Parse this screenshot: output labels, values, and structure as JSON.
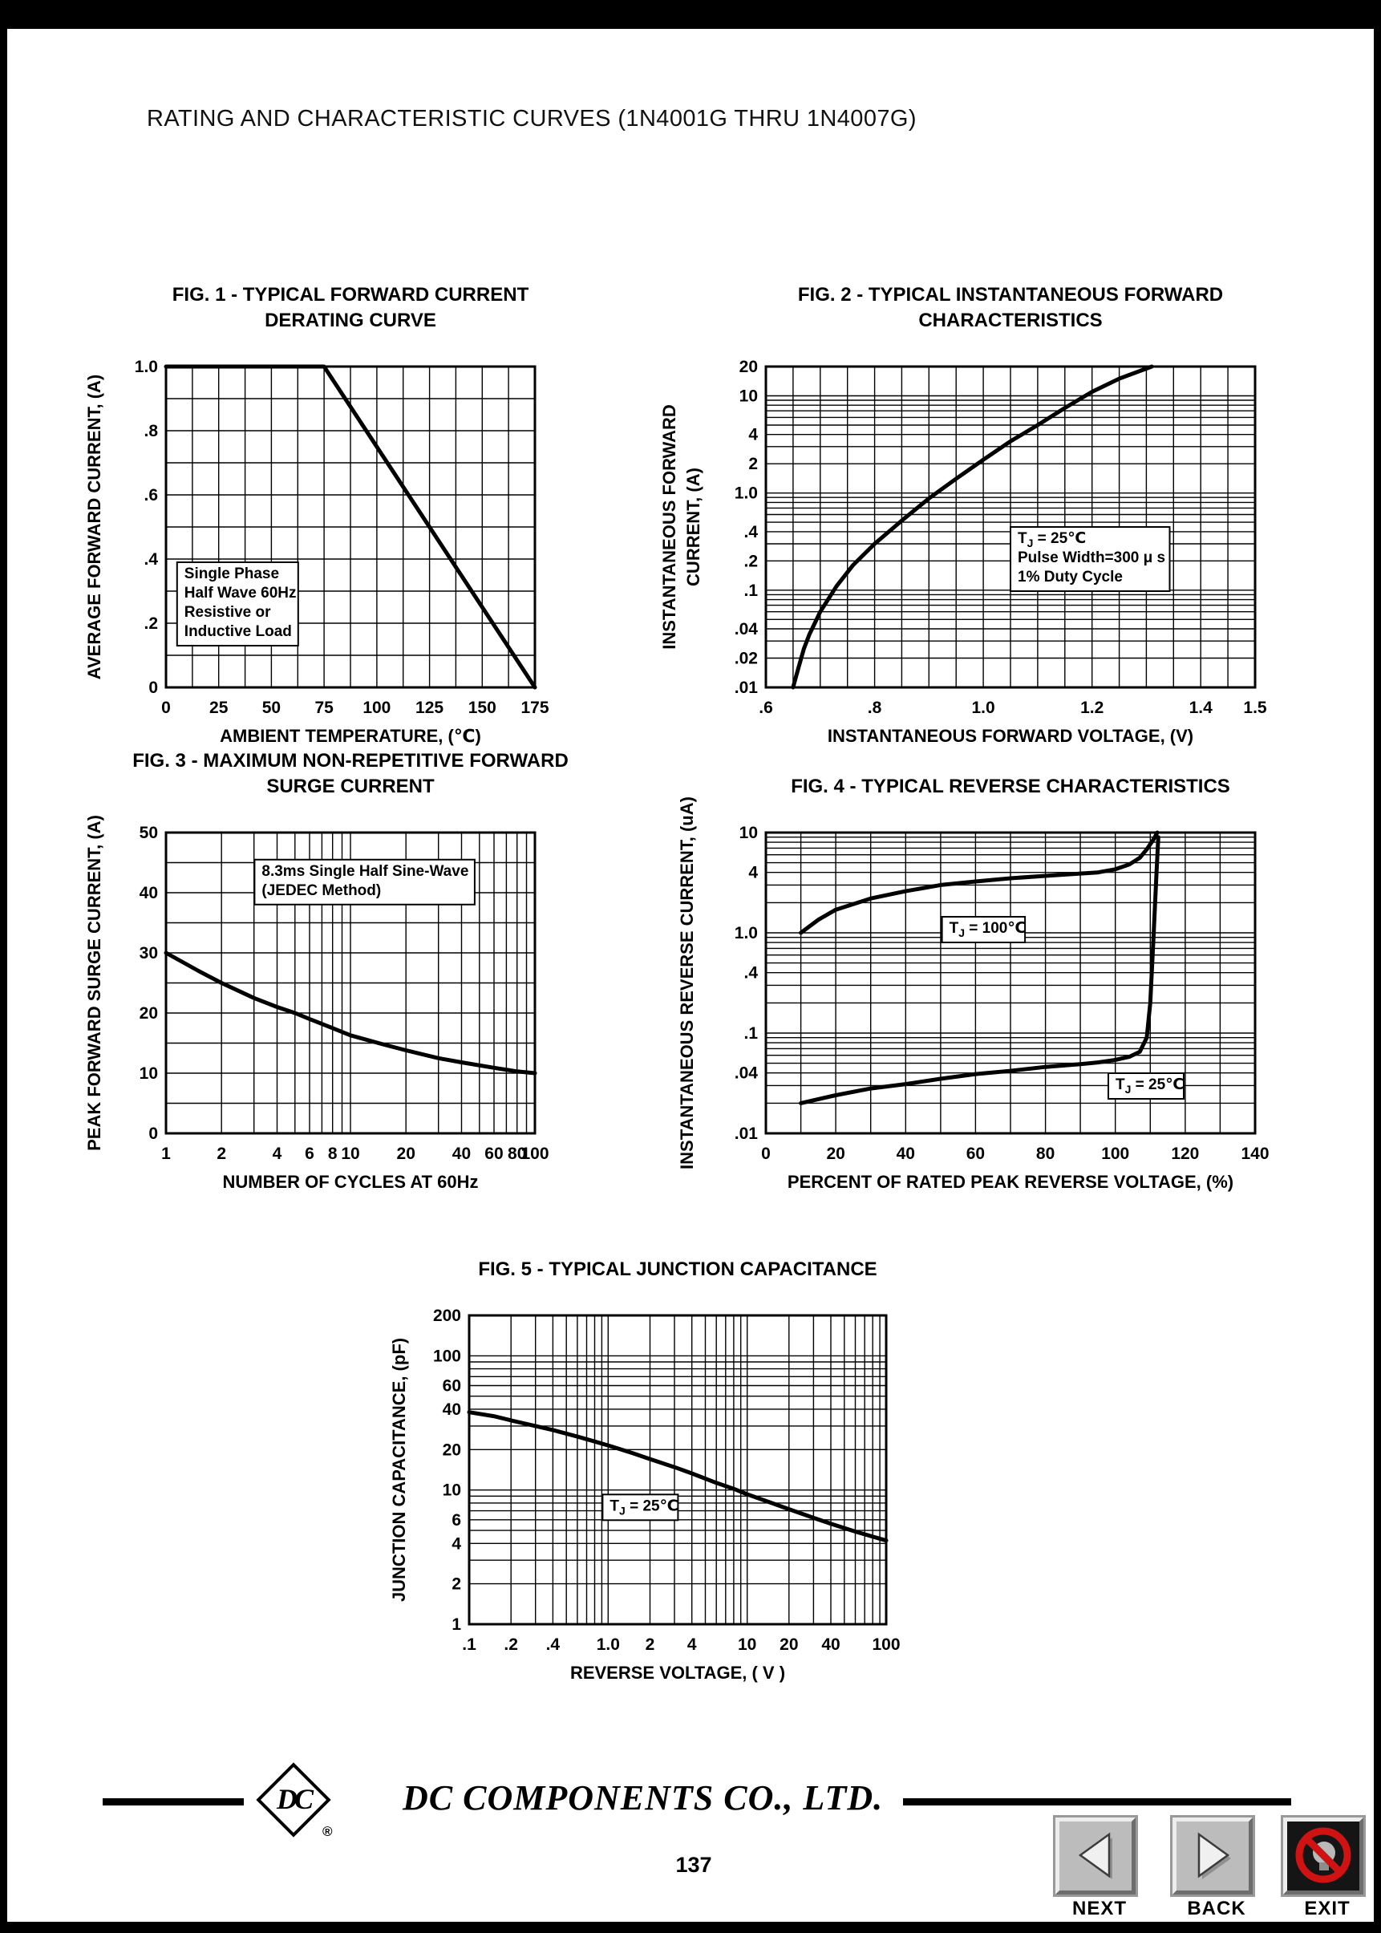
{
  "page": {
    "title": "RATING AND CHARACTERISTIC CURVES (1N4001G THRU 1N4007G)",
    "page_number": "137"
  },
  "footer": {
    "company": "DC COMPONENTS CO., LTD.",
    "logo_text": "DC",
    "registered_mark": "®"
  },
  "nav": {
    "next_label": "NEXT",
    "back_label": "BACK",
    "exit_label": "EXIT",
    "next_icon": "left-triangle",
    "back_icon": "right-triangle",
    "exit_icon": "crossed-out-lightbulb"
  },
  "chart_data": [
    {
      "id": "fig1",
      "type": "line",
      "title_lines": [
        "FIG. 1 - TYPICAL FORWARD CURRENT",
        "DERATING CURVE"
      ],
      "xlabel": "AMBIENT TEMPERATURE, (℃)",
      "ylabel_lines": [
        "AVERAGE FORWARD  CURRENT, (A)"
      ],
      "grid": true,
      "x_axis": {
        "scale": "linear",
        "min": 0,
        "max": 175,
        "minor_step": 12.5,
        "ticks": [
          0,
          25,
          50,
          75,
          100,
          125,
          150,
          175
        ],
        "tick_labels": [
          "0",
          "25",
          "50",
          "75",
          "100",
          "125",
          "150",
          "175"
        ]
      },
      "y_axis": {
        "scale": "linear",
        "min": 0,
        "max": 1,
        "minor_step": 0.1,
        "ticks": [
          0,
          0.2,
          0.4,
          0.6,
          0.8,
          1
        ],
        "tick_labels": [
          "0",
          ".2",
          ".4",
          ".6",
          ".8",
          "1.0"
        ]
      },
      "series": [
        {
          "name": "derating-curve",
          "points": [
            [
              0,
              1
            ],
            [
              75,
              1
            ],
            [
              175,
              0
            ]
          ]
        }
      ],
      "annotations": [
        {
          "lines": [
            "Single Phase",
            "Half Wave 60Hz",
            "Resistive or",
            "Inductive Load"
          ],
          "fx": 0.03,
          "fy": 0.61,
          "boxed": true
        }
      ]
    },
    {
      "id": "fig2",
      "type": "line",
      "title_lines": [
        "FIG. 2 - TYPICAL INSTANTANEOUS FORWARD",
        "CHARACTERISTICS"
      ],
      "xlabel": "INSTANTANEOUS FORWARD VOLTAGE, (V)",
      "ylabel_lines": [
        "INSTANTANEOUS FORWARD",
        "CURRENT, (A)"
      ],
      "grid": true,
      "x_axis": {
        "scale": "linear",
        "min": 0.6,
        "max": 1.5,
        "minor_step": 0.05,
        "ticks": [
          0.6,
          0.8,
          1.0,
          1.2,
          1.4,
          1.5
        ],
        "tick_labels": [
          ".6",
          ".8",
          "1.0",
          "1.2",
          "1.4",
          "1.5"
        ]
      },
      "y_axis": {
        "scale": "log",
        "min": 0.01,
        "max": 20,
        "ticks": [
          20,
          10,
          4,
          2,
          1,
          0.4,
          0.2,
          0.1,
          0.04,
          0.02,
          0.01
        ],
        "tick_labels": [
          "20",
          "10",
          "4",
          "2",
          "1.0",
          ".4",
          ".2",
          ".1",
          ".04",
          ".02",
          ".01"
        ]
      },
      "series": [
        {
          "name": "forward-characteristic",
          "points": [
            [
              0.65,
              0.01
            ],
            [
              0.66,
              0.016
            ],
            [
              0.67,
              0.025
            ],
            [
              0.68,
              0.035
            ],
            [
              0.7,
              0.06
            ],
            [
              0.73,
              0.11
            ],
            [
              0.76,
              0.18
            ],
            [
              0.8,
              0.3
            ],
            [
              0.85,
              0.52
            ],
            [
              0.9,
              0.88
            ],
            [
              0.95,
              1.4
            ],
            [
              1.0,
              2.2
            ],
            [
              1.05,
              3.4
            ],
            [
              1.1,
              5.0
            ],
            [
              1.15,
              7.5
            ],
            [
              1.2,
              11
            ],
            [
              1.25,
              15
            ],
            [
              1.31,
              20
            ]
          ]
        }
      ],
      "annotations": [
        {
          "lines": [
            "TJ = 25℃",
            "Pulse Width=300 μ s",
            "1% Duty Cycle"
          ],
          "fx": 0.5,
          "fy": 0.5,
          "boxed": true
        }
      ]
    },
    {
      "id": "fig3",
      "type": "line",
      "title_lines": [
        "FIG. 3 - MAXIMUM NON-REPETITIVE FORWARD",
        "SURGE CURRENT"
      ],
      "xlabel": "NUMBER OF CYCLES AT 60Hz",
      "ylabel_lines": [
        "PEAK FORWARD SURGE CURRENT, (A)"
      ],
      "grid": true,
      "x_axis": {
        "scale": "log",
        "min": 1,
        "max": 100,
        "ticks": [
          1,
          2,
          4,
          6,
          8,
          10,
          20,
          40,
          60,
          80,
          100
        ],
        "tick_labels": [
          "1",
          "2",
          "4",
          "6",
          "8",
          "10",
          "20",
          "40",
          "60",
          "80",
          "100"
        ]
      },
      "y_axis": {
        "scale": "linear",
        "min": 0,
        "max": 50,
        "minor_step": 5,
        "ticks": [
          0,
          10,
          20,
          30,
          40,
          50
        ],
        "tick_labels": [
          "0",
          "10",
          "20",
          "30",
          "40",
          "50"
        ]
      },
      "series": [
        {
          "name": "surge-current",
          "points": [
            [
              1,
              30
            ],
            [
              1.5,
              27
            ],
            [
              2,
              25
            ],
            [
              3,
              22.5
            ],
            [
              4,
              21
            ],
            [
              5,
              20
            ],
            [
              6,
              19
            ],
            [
              8,
              17.5
            ],
            [
              10,
              16.3
            ],
            [
              15,
              14.8
            ],
            [
              20,
              13.8
            ],
            [
              30,
              12.5
            ],
            [
              40,
              11.8
            ],
            [
              60,
              10.9
            ],
            [
              80,
              10.3
            ],
            [
              100,
              10
            ]
          ]
        }
      ],
      "annotations": [
        {
          "lines": [
            "8.3ms Single Half Sine-Wave",
            "(JEDEC Method)"
          ],
          "fx": 0.24,
          "fy": 0.09,
          "boxed": true
        }
      ]
    },
    {
      "id": "fig4",
      "type": "line",
      "title_lines": [
        "FIG. 4 - TYPICAL REVERSE CHARACTERISTICS"
      ],
      "xlabel": "PERCENT OF RATED PEAK REVERSE VOLTAGE, (%)",
      "ylabel_lines": [
        "INSTANTANEOUS REVERSE CURRENT, (uA)"
      ],
      "grid": true,
      "x_axis": {
        "scale": "linear",
        "min": 0,
        "max": 140,
        "minor_step": 10,
        "ticks": [
          0,
          20,
          40,
          60,
          80,
          100,
          120,
          140
        ],
        "tick_labels": [
          "0",
          "20",
          "40",
          "60",
          "80",
          "100",
          "120",
          "140"
        ]
      },
      "y_axis": {
        "scale": "log",
        "min": 0.01,
        "max": 10,
        "ticks": [
          10,
          4,
          1,
          0.4,
          0.1,
          0.04,
          0.01
        ],
        "tick_labels": [
          "10",
          "4",
          "1.0",
          ".4",
          ".1",
          ".04",
          ".01"
        ]
      },
      "series": [
        {
          "name": "tj-100c-curve",
          "points": [
            [
              10,
              1.0
            ],
            [
              15,
              1.35
            ],
            [
              20,
              1.7
            ],
            [
              30,
              2.2
            ],
            [
              40,
              2.6
            ],
            [
              50,
              3.0
            ],
            [
              60,
              3.25
            ],
            [
              70,
              3.5
            ],
            [
              80,
              3.7
            ],
            [
              90,
              3.9
            ],
            [
              95,
              4.0
            ],
            [
              100,
              4.3
            ],
            [
              104,
              4.8
            ],
            [
              107,
              5.6
            ],
            [
              109,
              6.8
            ],
            [
              111,
              8.6
            ],
            [
              112,
              10
            ]
          ]
        },
        {
          "name": "tj-25c-curve",
          "points": [
            [
              10,
              0.02
            ],
            [
              20,
              0.024
            ],
            [
              30,
              0.028
            ],
            [
              40,
              0.031
            ],
            [
              50,
              0.035
            ],
            [
              60,
              0.039
            ],
            [
              70,
              0.042
            ],
            [
              80,
              0.046
            ],
            [
              90,
              0.049
            ],
            [
              95,
              0.051
            ],
            [
              100,
              0.054
            ],
            [
              104,
              0.058
            ],
            [
              107,
              0.065
            ],
            [
              109,
              0.09
            ],
            [
              110,
              0.2
            ],
            [
              111,
              1.0
            ],
            [
              111.8,
              4.0
            ],
            [
              112.3,
              9.0
            ]
          ]
        }
      ],
      "annotations": [
        {
          "lines": [
            "TJ = 100℃"
          ],
          "fx": 0.36,
          "fy": 0.28,
          "boxed": true
        },
        {
          "lines": [
            "TJ = 25℃"
          ],
          "fx": 0.7,
          "fy": 0.8,
          "boxed": true
        }
      ]
    },
    {
      "id": "fig5",
      "type": "line",
      "title_lines": [
        "FIG. 5 - TYPICAL JUNCTION CAPACITANCE"
      ],
      "xlabel": "REVERSE VOLTAGE, ( V )",
      "ylabel_lines": [
        "JUNCTION CAPACITANCE, (pF)"
      ],
      "grid": true,
      "x_axis": {
        "scale": "log",
        "min": 0.1,
        "max": 100,
        "ticks": [
          0.1,
          0.2,
          0.4,
          1.0,
          2,
          4,
          10,
          20,
          40,
          100
        ],
        "tick_labels": [
          ".1",
          ".2",
          ".4",
          "1.0",
          "2",
          "4",
          "10",
          "20",
          "40",
          "100"
        ]
      },
      "y_axis": {
        "scale": "log",
        "min": 1,
        "max": 200,
        "ticks": [
          200,
          100,
          60,
          40,
          20,
          10,
          6,
          4,
          2,
          1
        ],
        "tick_labels": [
          "200",
          "100",
          "60",
          "40",
          "20",
          "10",
          "6",
          "4",
          "2",
          "1"
        ]
      },
      "series": [
        {
          "name": "junction-capacitance",
          "points": [
            [
              0.1,
              38
            ],
            [
              0.15,
              35.5
            ],
            [
              0.2,
              33
            ],
            [
              0.3,
              30
            ],
            [
              0.4,
              28
            ],
            [
              0.6,
              25
            ],
            [
              0.8,
              23
            ],
            [
              1.0,
              21.5
            ],
            [
              1.5,
              18.8
            ],
            [
              2,
              17
            ],
            [
              3,
              14.8
            ],
            [
              4,
              13.3
            ],
            [
              6,
              11.3
            ],
            [
              8,
              10.2
            ],
            [
              10,
              9.3
            ],
            [
              15,
              8
            ],
            [
              20,
              7.2
            ],
            [
              30,
              6.2
            ],
            [
              40,
              5.6
            ],
            [
              60,
              4.9
            ],
            [
              100,
              4.2
            ]
          ]
        }
      ],
      "annotations": [
        {
          "lines": [
            "TJ = 25℃"
          ],
          "fx": 0.32,
          "fy": 0.58,
          "boxed": true
        }
      ]
    }
  ]
}
